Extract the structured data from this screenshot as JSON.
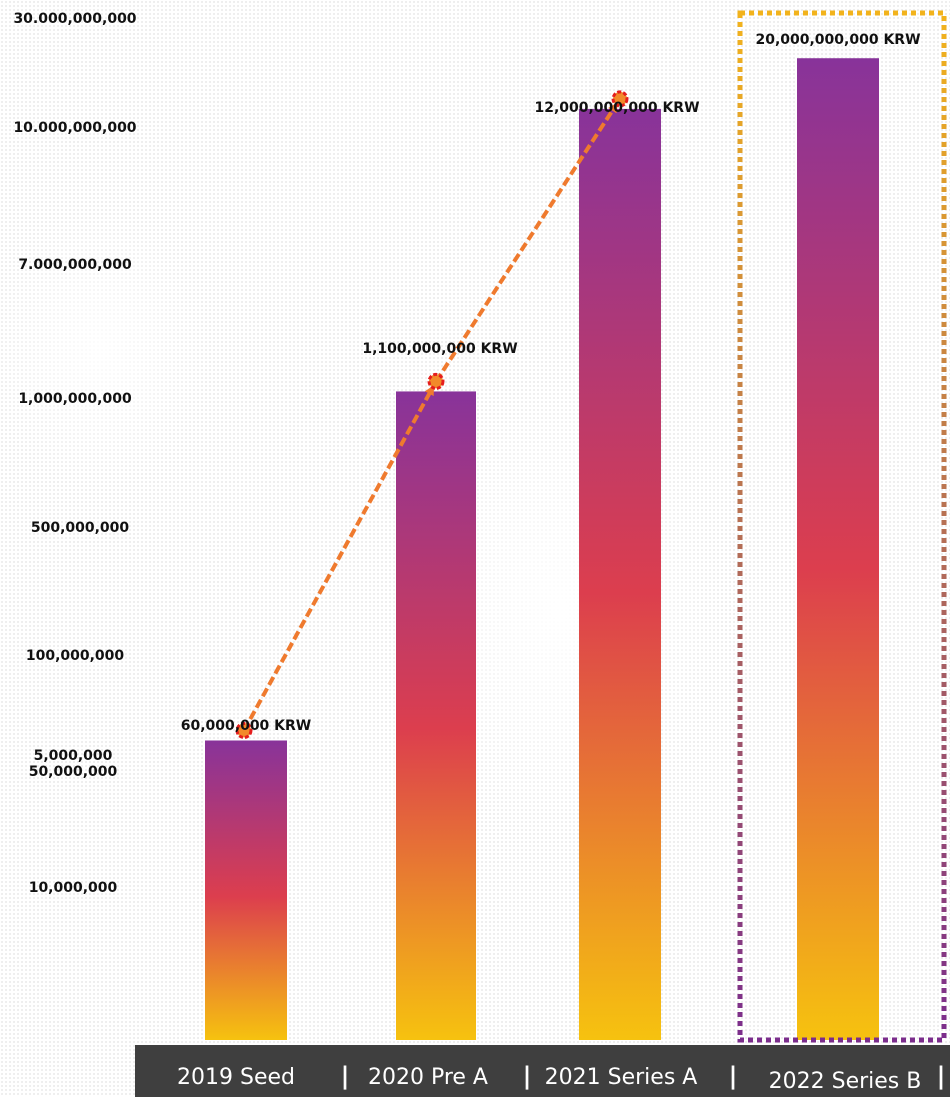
{
  "colors": {
    "bar_top": "#88339a",
    "bar_mid": "#dc3e4e",
    "bar_bottom": "#f6c20f",
    "arrow": "#ef7a2e",
    "marker_fill": "#f28a2a",
    "marker_ring": "#e51d1d",
    "highlight_top": "#f2b31c",
    "highlight_bottom": "#7b2d8c",
    "category_bar": "#3f3f3f"
  },
  "chart_data": {
    "type": "bar",
    "title": "",
    "xlabel": "",
    "ylabel": "",
    "y_ticks": [
      "30.000,000,000",
      "10.000,000,000",
      "7.000,000,000",
      "1,000,000,000",
      "500,000,000",
      "100,000,000",
      "50,000,000",
      "10,000,000",
      "5,000,000"
    ],
    "y_tick_values": [
      30000000000,
      10000000000,
      7000000000,
      1000000000,
      500000000,
      100000000,
      50000000,
      10000000,
      5000000
    ],
    "categories": [
      "2019 Seed",
      "2020 Pre A",
      "2021 Series A",
      "2022 Series B"
    ],
    "values": [
      60000000,
      1100000000,
      12000000000,
      20000000000
    ],
    "value_labels": [
      "60,000,000 KRW",
      "1,100,000,000 KRW",
      "12,000,000,000 KRW",
      "20,000,000,000 KRW"
    ],
    "category_separator": "|",
    "trend_arrow": "2019 Seed → 2020 Pre A → 2021 Series A",
    "highlighted_category": "2022 Series B",
    "grid": false,
    "legend": "none"
  }
}
